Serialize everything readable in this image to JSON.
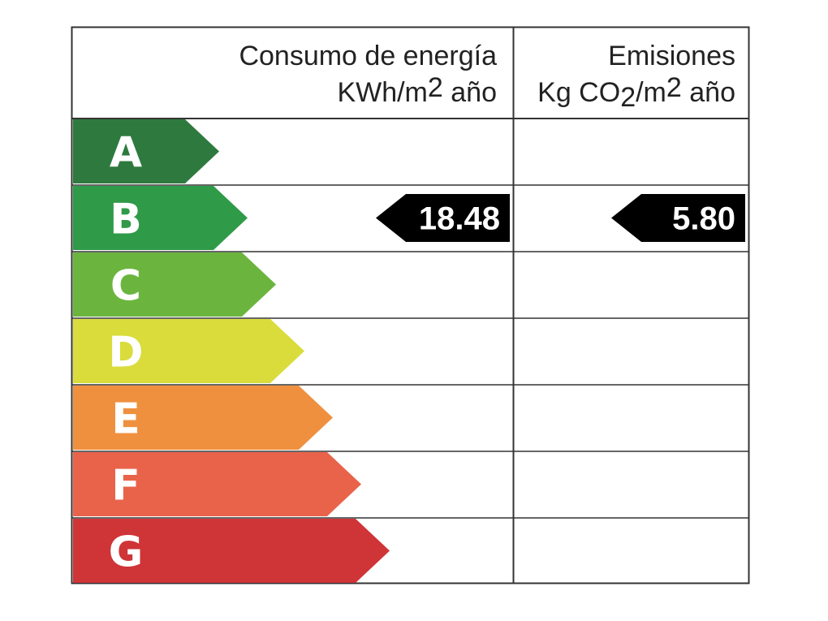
{
  "energy_header": {
    "title": "Consumo de energía",
    "unit": [
      "KWh/m",
      "2",
      " año"
    ]
  },
  "emissions_header": {
    "title": "Emisiones",
    "unit": [
      "Kg CO",
      "2",
      "/m",
      "2",
      " año"
    ]
  },
  "rows": [
    {
      "letter": "A",
      "color": "#2e7a3e"
    },
    {
      "letter": "B",
      "color": "#2f9a48",
      "energy": "18.48",
      "emissions": "5.80"
    },
    {
      "letter": "C",
      "color": "#6bb53f"
    },
    {
      "letter": "D",
      "color": "#d9dc3b"
    },
    {
      "letter": "E",
      "color": "#ef903f"
    },
    {
      "letter": "F",
      "color": "#e9634b"
    },
    {
      "letter": "G",
      "color": "#cf3437"
    }
  ]
}
